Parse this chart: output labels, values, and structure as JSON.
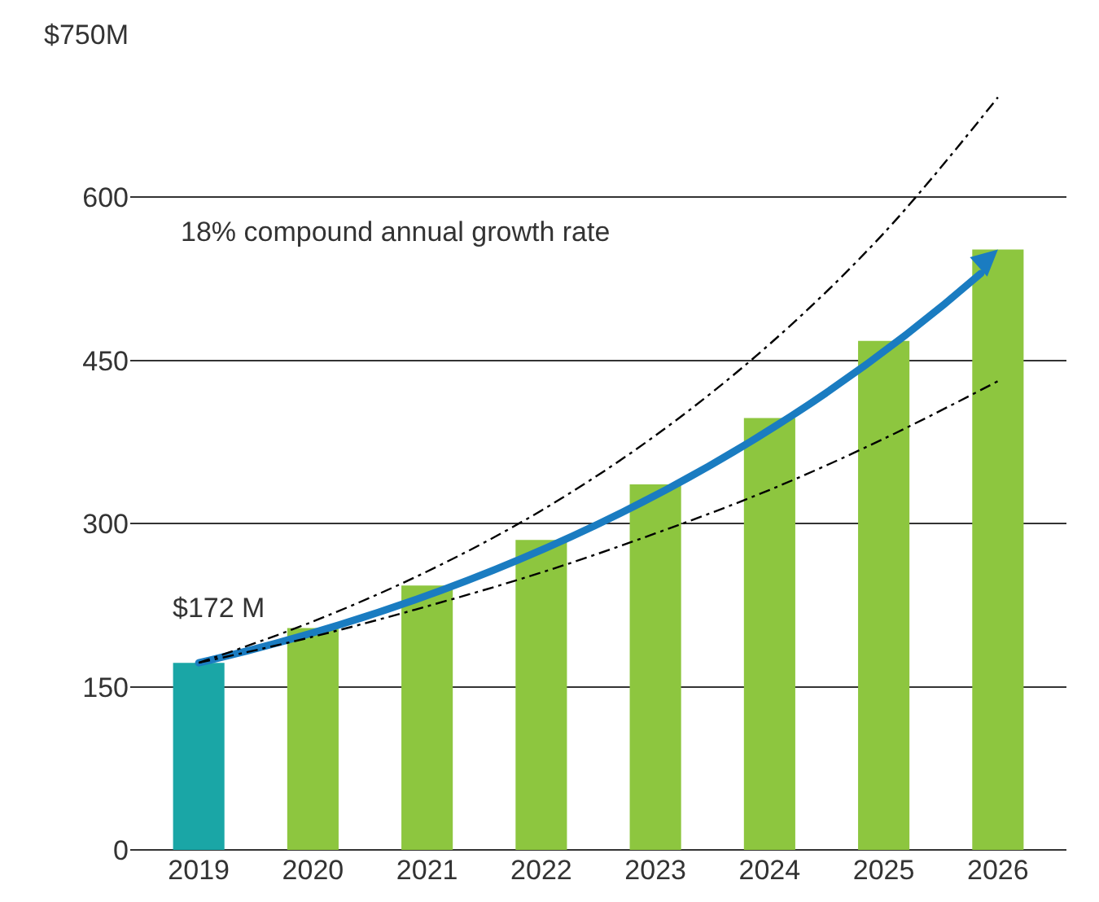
{
  "chart_data": {
    "type": "bar",
    "categories": [
      "2019",
      "2020",
      "2021",
      "2022",
      "2023",
      "2024",
      "2025",
      "2026"
    ],
    "series": [
      {
        "values": [
          172,
          204,
          243,
          285,
          336,
          397,
          468,
          552
        ],
        "colors": [
          "#1aa6a6",
          "#8dc63f",
          "#8dc63f",
          "#8dc63f",
          "#8dc63f",
          "#8dc63f",
          "#8dc63f",
          "#8dc63f"
        ]
      },
      {
        "type": "line",
        "color": "#000000",
        "line_style": "dashed",
        "values": [
          172,
          210,
          256,
          312,
          381,
          465,
          567,
          692
        ]
      },
      {
        "type": "line",
        "color": "#000000",
        "line_style": "dashed",
        "values": [
          172,
          196,
          224,
          255,
          291,
          331,
          378,
          431
        ]
      }
    ],
    "ylim": [
      0,
      750
    ],
    "yticks": [
      0,
      150,
      300,
      450,
      {
        "value": 750,
        "label": "$750M"
      },
      600
    ],
    "grid": "y",
    "marker": "none",
    "annotations": [
      "18% compound annual growth rate",
      {
        "text": "$172 M",
        "x": "2019",
        "y": 172
      }
    ]
  }
}
